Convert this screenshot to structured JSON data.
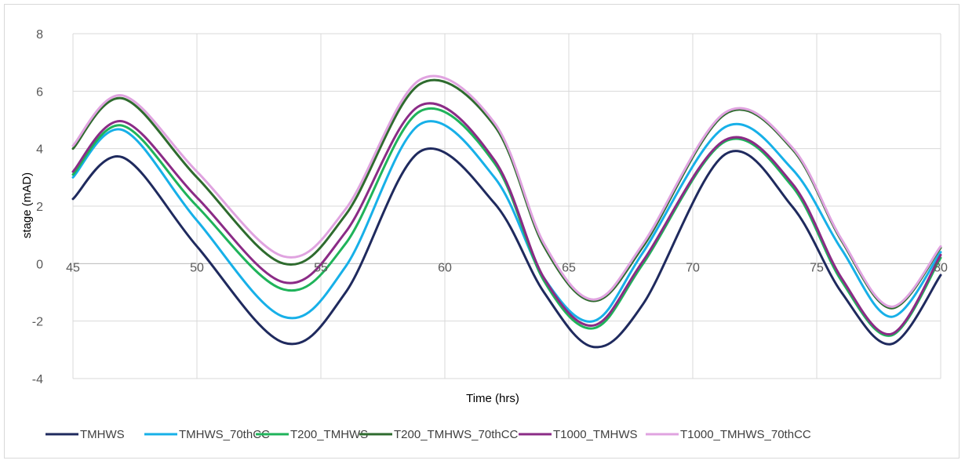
{
  "chart_data": {
    "type": "line",
    "title": "",
    "xlabel": "Time (hrs)",
    "ylabel": "stage (mAD)",
    "xlim": [
      45,
      80
    ],
    "ylim": [
      -4,
      8
    ],
    "xticks": [
      45,
      50,
      55,
      60,
      65,
      70,
      75,
      80
    ],
    "yticks": [
      -4,
      -2,
      0,
      2,
      4,
      6,
      8
    ],
    "grid": true,
    "legend_position": "bottom",
    "x": [
      45,
      47,
      50,
      53.5,
      56,
      59,
      62,
      64,
      66,
      68,
      71.3,
      74,
      76,
      78,
      80
    ],
    "series": [
      {
        "name": "TMHWS",
        "color": "#1f2a5e",
        "values": [
          2.25,
          3.7,
          0.6,
          -2.75,
          -1.0,
          3.9,
          2.1,
          -1.0,
          -2.9,
          -1.4,
          3.8,
          2.0,
          -1.0,
          -2.8,
          -0.4
        ]
      },
      {
        "name": "TMHWS_70thCC",
        "color": "#17b0e8",
        "values": [
          3.0,
          4.65,
          1.5,
          -1.85,
          -0.1,
          4.85,
          3.0,
          -0.5,
          -2.0,
          0.4,
          4.75,
          3.3,
          0.5,
          -1.85,
          0.4
        ]
      },
      {
        "name": "T200_TMHWS",
        "color": "#1fb35a",
        "values": [
          3.1,
          4.8,
          2.0,
          -0.9,
          0.7,
          5.3,
          3.5,
          -0.6,
          -2.25,
          0.0,
          4.25,
          2.7,
          -0.6,
          -2.5,
          0.2
        ]
      },
      {
        "name": "T200_TMHWS_70thCC",
        "color": "#2e6b2e",
        "values": [
          4.0,
          5.75,
          3.0,
          0.0,
          1.7,
          6.25,
          4.8,
          0.6,
          -1.3,
          0.6,
          5.2,
          4.0,
          0.8,
          -1.55,
          0.55
        ]
      },
      {
        "name": "T1000_TMHWS",
        "color": "#8b2b86",
        "values": [
          3.2,
          4.95,
          2.3,
          -0.65,
          1.1,
          5.5,
          3.6,
          -0.5,
          -2.15,
          0.1,
          4.3,
          2.8,
          -0.5,
          -2.45,
          0.3
        ]
      },
      {
        "name": "T1000_TMHWS_70thCC",
        "color": "#e0a3e0",
        "values": [
          4.1,
          5.85,
          3.2,
          0.25,
          1.9,
          6.4,
          4.9,
          0.7,
          -1.25,
          0.7,
          5.25,
          4.05,
          0.85,
          -1.5,
          0.6
        ]
      }
    ]
  }
}
